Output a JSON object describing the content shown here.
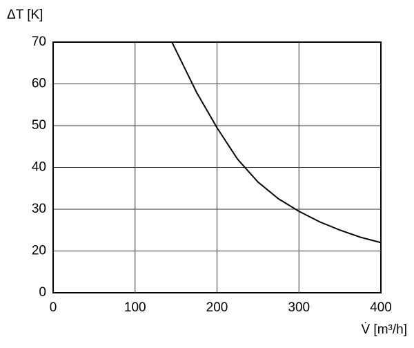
{
  "chart_data": {
    "type": "line",
    "y_label": "ΔT [K]",
    "x_label": "V̇ [m³/h]",
    "x": [
      145,
      160,
      175,
      200,
      225,
      250,
      275,
      300,
      325,
      350,
      375,
      400
    ],
    "series": [
      {
        "color": "#000000",
        "values": [
          70,
          64,
          58,
          49.5,
          42,
          36.5,
          32.5,
          29.5,
          27,
          25,
          23.3,
          22
        ]
      }
    ],
    "xlim": [
      0,
      400
    ],
    "xticks": [
      0,
      100,
      200,
      300,
      400
    ],
    "ylim": [
      10,
      70
    ],
    "yticks": [
      {
        "value": 10,
        "label": "0"
      },
      20,
      30,
      40,
      50,
      60,
      70
    ],
    "grid": true
  }
}
